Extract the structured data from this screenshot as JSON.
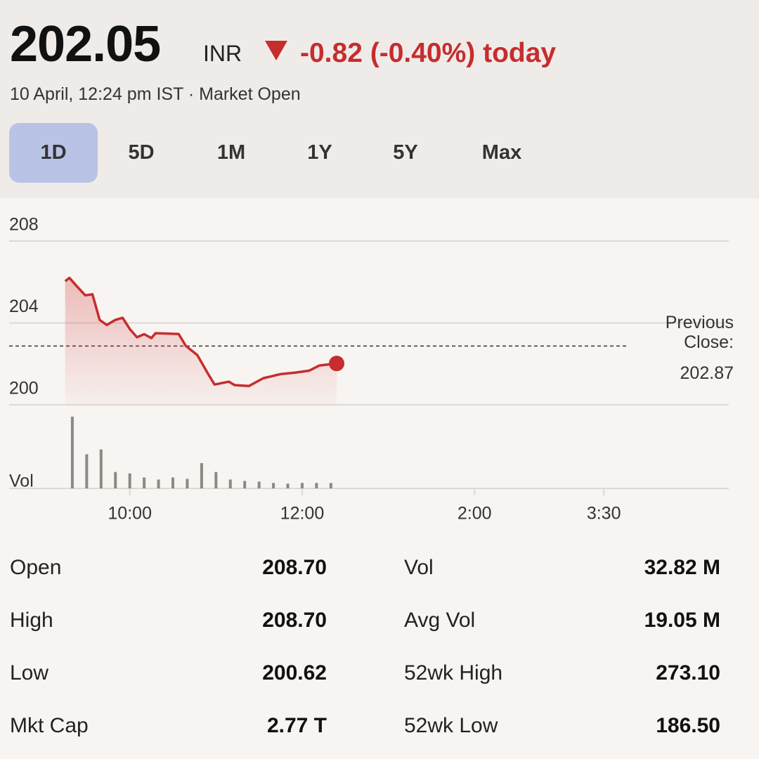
{
  "header": {
    "price": 202.05,
    "currency": "INR",
    "change": "-0.82 (-0.40%) today",
    "timestamp": "10 April, 12:24 pm IST · Market Open"
  },
  "ranges": [
    "1D",
    "5D",
    "1M",
    "1Y",
    "5Y",
    "Max"
  ],
  "selected_range": 0,
  "chart_data": {
    "type": "line",
    "color": "#c62d2d",
    "x": [
      555,
      558,
      563,
      569,
      574,
      579,
      584,
      590,
      595,
      600,
      605,
      610,
      615,
      618,
      634,
      639,
      647,
      654,
      659,
      669,
      673,
      683,
      693,
      705,
      715,
      725,
      732,
      744
    ],
    "values": [
      206.04,
      206.2,
      205.8,
      205.35,
      205.4,
      204.15,
      203.9,
      204.15,
      204.25,
      203.7,
      203.3,
      203.45,
      203.26,
      203.5,
      203.46,
      202.88,
      202.43,
      201.57,
      200.99,
      201.13,
      200.96,
      200.92,
      201.3,
      201.5,
      201.57,
      201.67,
      201.92,
      202.02
    ],
    "ylim": [
      200,
      208
    ],
    "yticks": [
      200,
      204,
      208
    ],
    "grid": true,
    "xlim": [
      516,
      1017
    ],
    "xticks": [
      {
        "value": 600,
        "label": "10:00"
      },
      {
        "value": 720,
        "label": "12:00"
      },
      {
        "value": 840,
        "label": "2:00"
      },
      {
        "value": 930,
        "label": "3:30"
      }
    ],
    "previous_close_label": "Previous Close:",
    "previous_close": 202.87,
    "volume": {
      "label": "Vol",
      "color": "#8a8a85",
      "x": [
        560,
        570,
        580,
        590,
        600,
        610,
        620,
        630,
        640,
        650,
        660,
        670,
        680,
        690,
        700,
        710,
        720,
        730,
        740
      ],
      "values": [
        105,
        50,
        57,
        24,
        22,
        16,
        13,
        16,
        14,
        37,
        24,
        13,
        11,
        10,
        8,
        7,
        8,
        8,
        8
      ],
      "lim": [
        0,
        110
      ]
    }
  },
  "stats": [
    [
      {
        "label": "Open",
        "value": "208.70"
      },
      {
        "label": "Vol",
        "value": "32.82 M"
      }
    ],
    [
      {
        "label": "High",
        "value": "208.70"
      },
      {
        "label": "Avg Vol",
        "value": "19.05 M"
      }
    ],
    [
      {
        "label": "Low",
        "value": "200.62"
      },
      {
        "label": "52wk High",
        "value": "273.10"
      }
    ],
    [
      {
        "label": "Mkt Cap",
        "value": "2.77 T"
      },
      {
        "label": "52wk Low",
        "value": "186.50"
      }
    ]
  ]
}
